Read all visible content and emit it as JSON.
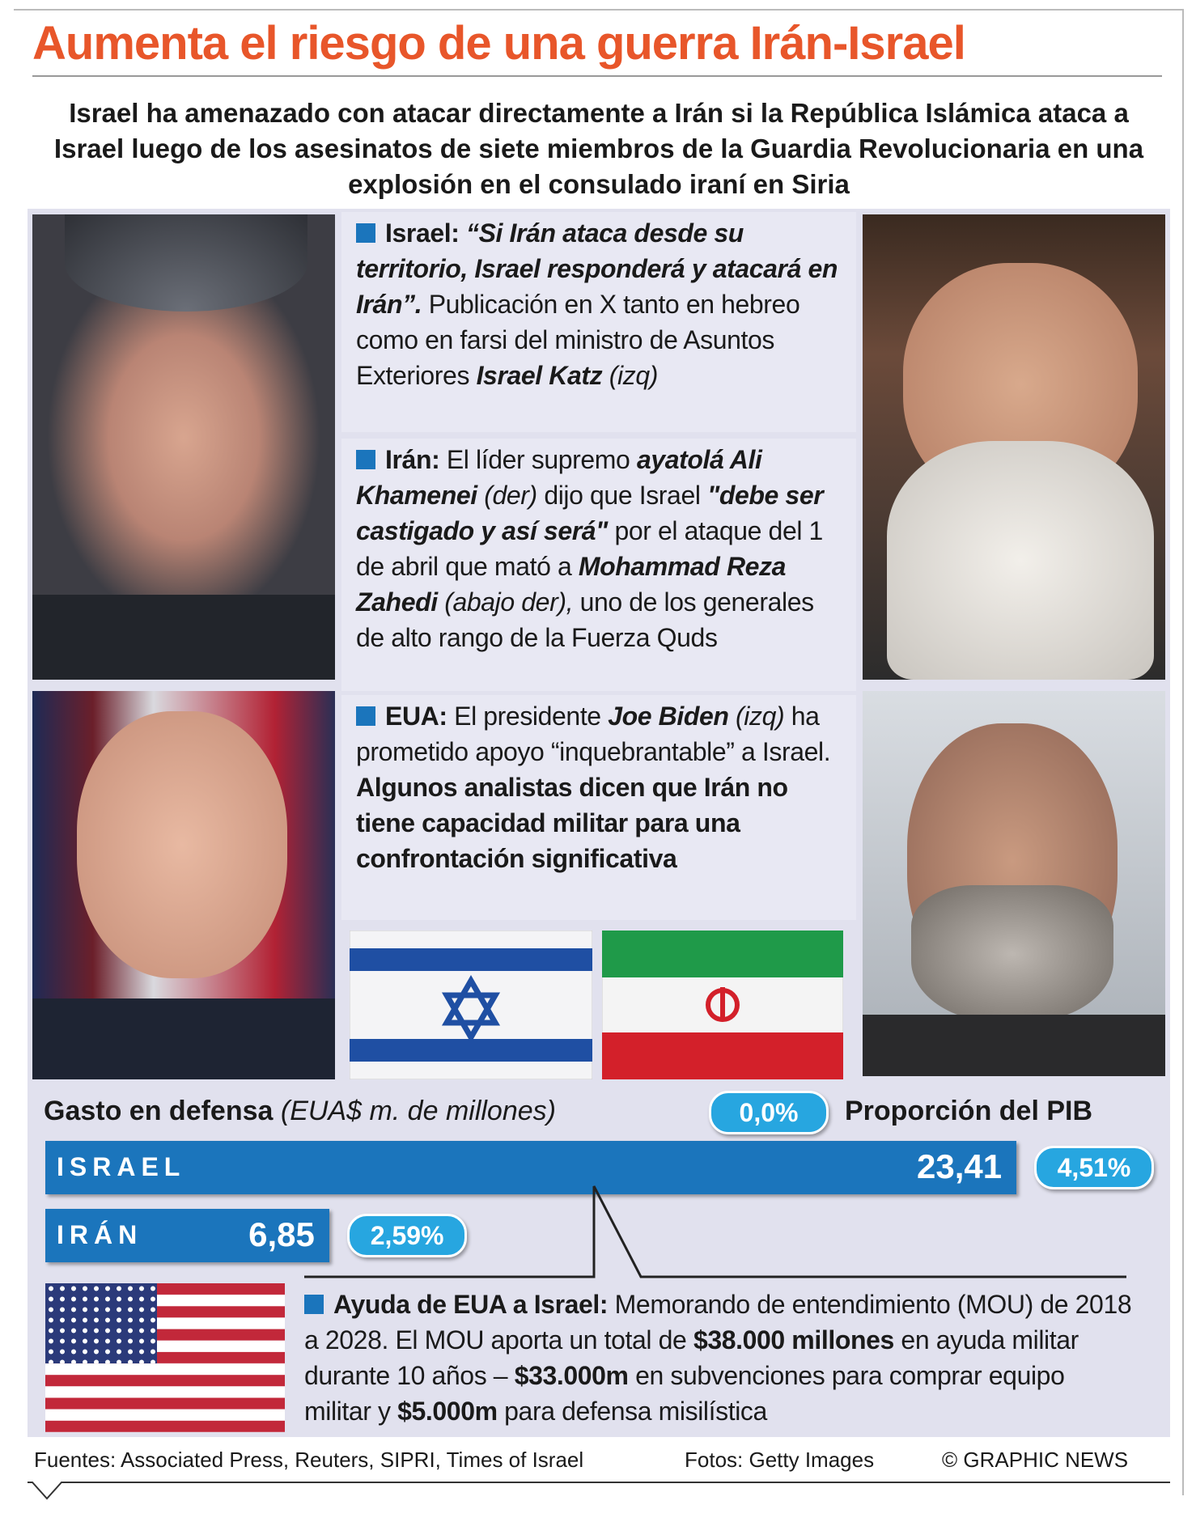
{
  "title": "Aumenta el riesgo de una guerra Irán-Israel",
  "subtitle": "Israel ha amenazado con atacar directamente a Irán si la República Islámica ataca a Israel luego de los asesinatos de siete miembros de la Guardia Revolucionaria en una explosión en el consulado iraní en Siria",
  "panels": [
    {
      "label": "Israel:",
      "segments": [
        "“Si Irán ataca desde su territorio, Israel responderá y atacará en Irán”.",
        "Publicación en X tanto en hebreo como en farsi del ministro de Asuntos Exteriores",
        "Israel Katz",
        "(izq)"
      ]
    },
    {
      "label": "Irán:",
      "segments": [
        "El líder supremo",
        "ayatolá Ali Khamenei",
        "(der)",
        "dijo que Israel",
        "\"debe ser castigado y así será\"",
        "por el ataque del 1 de abril que mató a",
        "Mohammad Reza Zahedi",
        "(abajo der),",
        "uno de los generales de alto rango de la Fuerza Quds"
      ]
    },
    {
      "label": "EUA:",
      "segments": [
        "El presidente",
        "Joe Biden",
        "(izq)",
        "ha prometido apoyo “inquebrantable” a Israel.",
        "Algunos analistas dicen que Irán no tiene capacidad militar para una confrontación significativa"
      ]
    }
  ],
  "chart_data": {
    "type": "bar",
    "title": "Gasto en defensa",
    "subtitle": "(EUA$ m. de millones)",
    "categories": [
      "ISRAEL",
      "IRÁN"
    ],
    "values": [
      23.41,
      6.85
    ],
    "value_labels": [
      "23,41",
      "6,85"
    ],
    "color": "#1b75bc",
    "share_title": "Proporción del PIB",
    "legend_label": "0,0%",
    "share": [
      4.51,
      2.59
    ],
    "share_labels": [
      "4,51%",
      "2,59%"
    ]
  },
  "aid": {
    "label": "Ayuda de EUA a Israel:",
    "segments": [
      "Memorando de entendimiento (MOU) de 2018 a 2028. El MOU aporta un total de",
      "$38.000 millones",
      "en ayuda militar durante 10 años –",
      "$33.000m",
      "en subvenciones para comprar equipo militar y",
      "$5.000m",
      "para defensa misilística"
    ]
  },
  "footer": {
    "sources": "Fuentes: Associated Press, Reuters, SIPRI, Times of Israel",
    "photos": "Fotos: Getty Images",
    "credit": "© GRAPHIC NEWS"
  }
}
